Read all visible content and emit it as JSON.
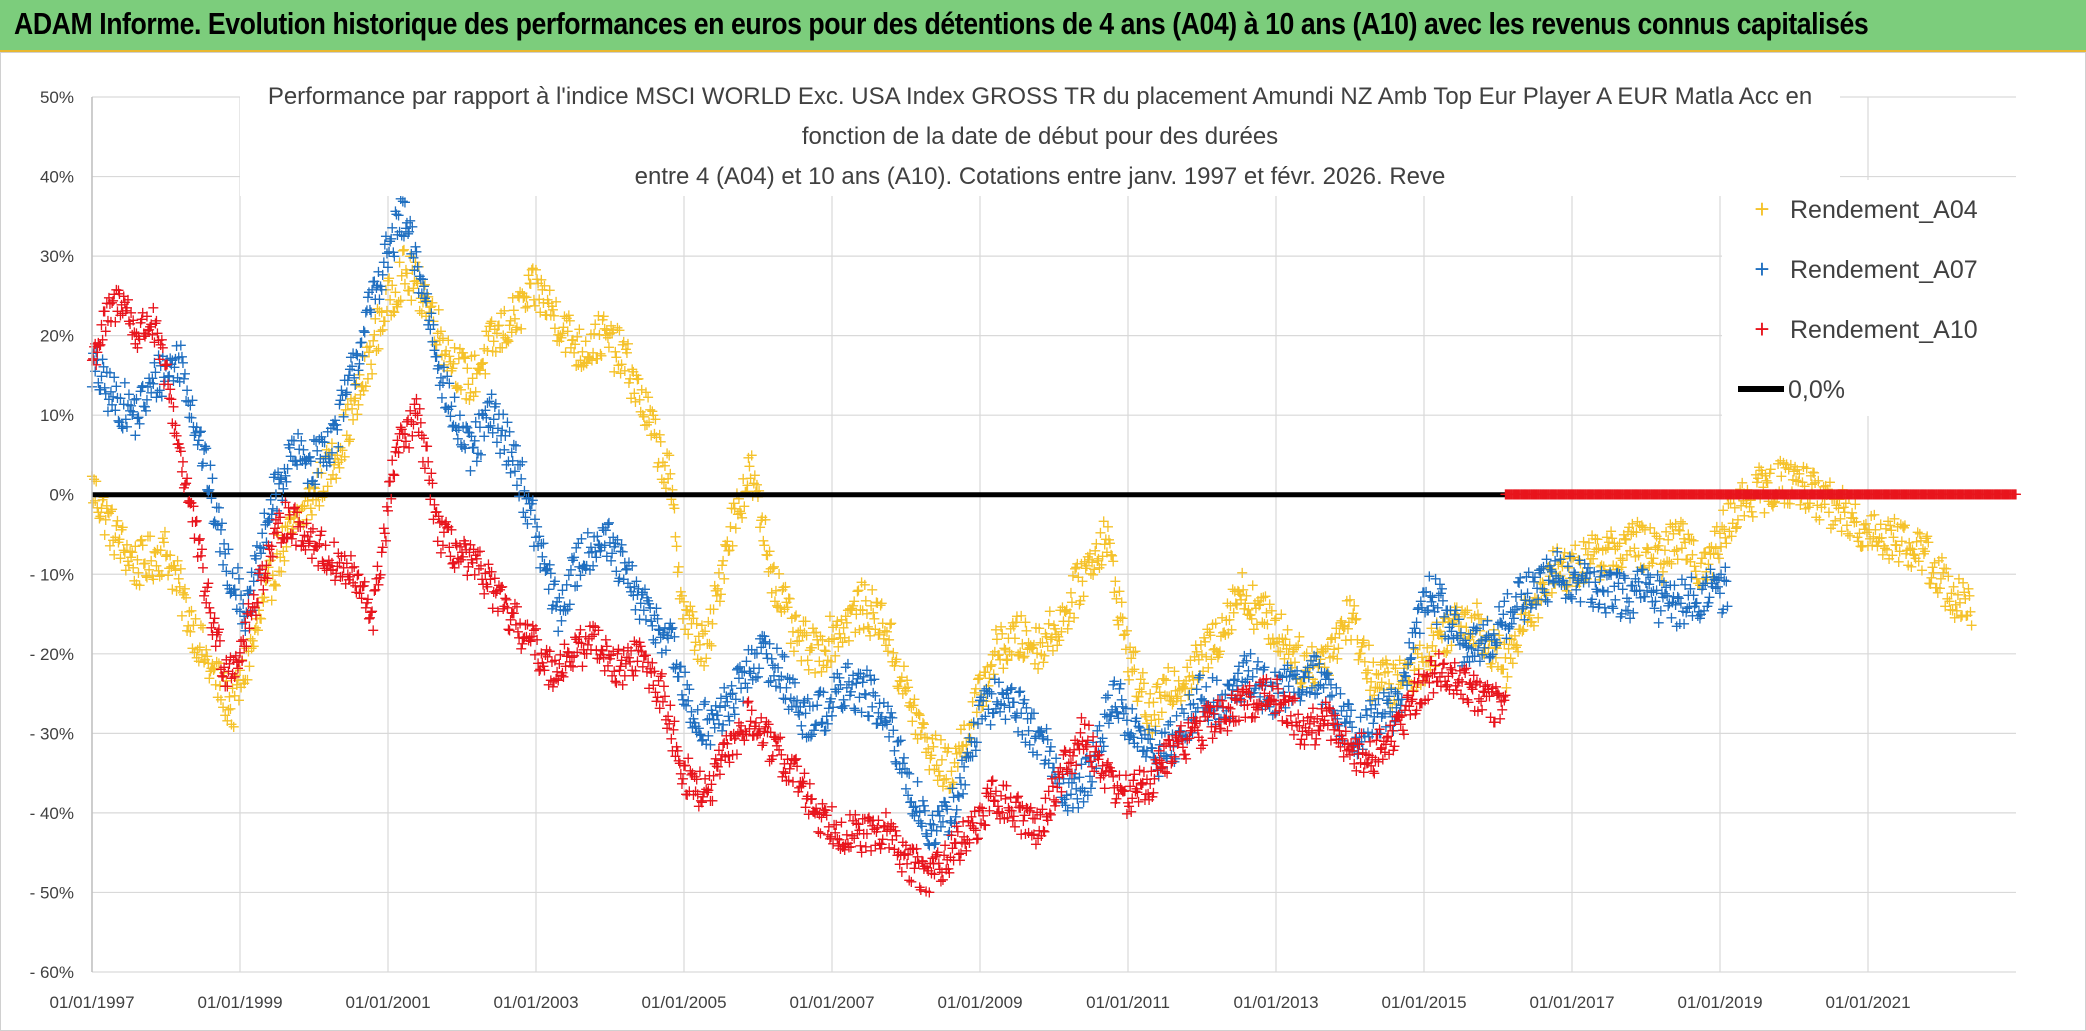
{
  "banner": {
    "title": "ADAM Informe. Evolution historique des performances en euros pour des détentions de 4 ans (A04) à 10 ans (A10) avec les revenus connus capitalisés",
    "background": "#7ccd7c"
  },
  "chart_data": {
    "type": "scatter",
    "title_lines": [
      "Performance par rapport à l'indice MSCI WORLD Exc. USA Index GROSS TR  du placement Amundi NZ Amb Top Eur Player A EUR Matla Acc en",
      "fonction de la date de début pour des durées",
      "entre 4 (A04) et 10 ans (A10). Cotations entre janv. 1997 et févr. 2026. Reve"
    ],
    "xlabel": "",
    "ylabel": "",
    "x_range": [
      1997.0,
      2023.0
    ],
    "ylim": [
      -60,
      50
    ],
    "yticks": [
      50,
      40,
      30,
      20,
      10,
      0,
      -10,
      -20,
      -30,
      -40,
      -50,
      -60
    ],
    "ytick_labels": [
      "50%",
      "40%",
      "30%",
      "20%",
      "10%",
      "0%",
      "- 10%",
      "- 20%",
      "- 30%",
      "- 40%",
      "- 50%",
      "- 60%"
    ],
    "xticks": [
      1997,
      1999,
      2001,
      2003,
      2005,
      2007,
      2009,
      2011,
      2013,
      2015,
      2017,
      2019,
      2021
    ],
    "xtick_labels": [
      "01/01/1997",
      "01/01/1999",
      "01/01/2001",
      "01/01/2003",
      "01/01/2005",
      "01/01/2007",
      "01/01/2009",
      "01/01/2011",
      "01/01/2013",
      "01/01/2015",
      "01/01/2017",
      "01/01/2019",
      "01/01/2021"
    ],
    "grid": true,
    "legend_position": "top-right",
    "series": [
      {
        "name": "Rendement_A04",
        "color": "#f5c22a",
        "marker": "+",
        "x": [
          1997.0,
          1997.3,
          1997.6,
          1998.0,
          1998.3,
          1998.6,
          1998.9,
          1999.2,
          1999.5,
          1999.8,
          2000.0,
          2000.3,
          2000.6,
          2000.9,
          2001.2,
          2001.5,
          2001.8,
          2002.1,
          2002.4,
          2002.7,
          2003.0,
          2003.3,
          2003.6,
          2003.9,
          2004.2,
          2004.5,
          2004.8,
          2005.0,
          2005.3,
          2005.6,
          2005.9,
          2006.2,
          2006.5,
          2006.8,
          2007.1,
          2007.4,
          2007.7,
          2008.0,
          2008.3,
          2008.6,
          2008.9,
          2009.2,
          2009.5,
          2009.8,
          2010.1,
          2010.4,
          2010.7,
          2011.0,
          2011.3,
          2011.6,
          2011.9,
          2012.2,
          2012.5,
          2012.8,
          2013.1,
          2013.4,
          2013.7,
          2014.0,
          2014.3,
          2014.6,
          2014.9,
          2015.2,
          2015.5,
          2015.8,
          2016.1,
          2016.4,
          2016.7,
          2017.0,
          2017.3,
          2017.6,
          2017.9,
          2018.2,
          2018.5,
          2018.8,
          2019.1,
          2019.4,
          2019.7,
          2020.0,
          2020.3,
          2020.6,
          2020.9,
          2021.2,
          2021.5,
          2021.8,
          2022.1,
          2022.4
        ],
        "y": [
          1,
          -5,
          -9,
          -7,
          -15,
          -22,
          -27,
          -18,
          -8,
          -3,
          0,
          5,
          12,
          22,
          28,
          25,
          18,
          14,
          19,
          22,
          26,
          22,
          18,
          20,
          17,
          10,
          2,
          -15,
          -20,
          -5,
          3,
          -10,
          -18,
          -20,
          -17,
          -14,
          -16,
          -25,
          -32,
          -35,
          -28,
          -20,
          -18,
          -19,
          -16,
          -10,
          -5,
          -20,
          -28,
          -24,
          -22,
          -18,
          -12,
          -15,
          -18,
          -22,
          -20,
          -15,
          -23,
          -24,
          -22,
          -18,
          -15,
          -17,
          -22,
          -15,
          -10,
          -9,
          -8,
          -7,
          -6,
          -8,
          -5,
          -10,
          -3,
          0,
          1,
          2,
          0,
          -2,
          -4,
          -5,
          -6,
          -8,
          -12,
          -15
        ],
        "y_spread": 3
      },
      {
        "name": "Rendement_A07",
        "color": "#1f6fc0",
        "marker": "+",
        "x": [
          1997.0,
          1997.3,
          1997.6,
          1997.9,
          1998.2,
          1998.5,
          1998.8,
          1999.1,
          1999.4,
          1999.7,
          2000.0,
          2000.3,
          2000.6,
          2000.9,
          2001.2,
          2001.5,
          2001.8,
          2002.1,
          2002.4,
          2002.7,
          2003.0,
          2003.3,
          2003.6,
          2003.9,
          2004.2,
          2004.5,
          2004.8,
          2005.1,
          2005.4,
          2005.7,
          2006.0,
          2006.3,
          2006.6,
          2006.9,
          2007.2,
          2007.5,
          2007.8,
          2008.1,
          2008.4,
          2008.7,
          2009.0,
          2009.3,
          2009.6,
          2009.9,
          2010.2,
          2010.5,
          2010.8,
          2011.1,
          2011.4,
          2011.7,
          2012.0,
          2012.3,
          2012.6,
          2012.9,
          2013.2,
          2013.5,
          2013.8,
          2014.1,
          2014.4,
          2014.7,
          2015.0,
          2015.3,
          2015.6,
          2015.9,
          2016.2,
          2016.5,
          2016.8,
          2017.1,
          2017.4,
          2017.7,
          2018.0,
          2018.3,
          2018.6,
          2018.9,
          2019.1
        ],
        "y": [
          16,
          12,
          10,
          15,
          17,
          5,
          -8,
          -15,
          -2,
          5,
          4,
          8,
          18,
          28,
          35,
          25,
          12,
          5,
          10,
          5,
          -5,
          -15,
          -8,
          -5,
          -10,
          -15,
          -18,
          -28,
          -29,
          -25,
          -20,
          -22,
          -28,
          -27,
          -24,
          -25,
          -30,
          -38,
          -43,
          -38,
          -28,
          -25,
          -28,
          -32,
          -38,
          -35,
          -25,
          -30,
          -33,
          -30,
          -25,
          -27,
          -22,
          -25,
          -24,
          -22,
          -27,
          -30,
          -28,
          -26,
          -12,
          -15,
          -20,
          -18,
          -14,
          -12,
          -10,
          -11,
          -12,
          -13,
          -12,
          -14,
          -13,
          -12,
          -12
        ],
        "y_spread": 3
      },
      {
        "name": "Rendement_A10",
        "color": "#e8141c",
        "marker": "+",
        "x": [
          1997.0,
          1997.2,
          1997.4,
          1997.6,
          1997.8,
          1998.0,
          1998.2,
          1998.4,
          1998.6,
          1998.8,
          1999.0,
          1999.3,
          1999.6,
          1999.9,
          2000.2,
          2000.5,
          2000.8,
          2001.1,
          2001.4,
          2001.7,
          2002.0,
          2002.3,
          2002.6,
          2002.9,
          2003.2,
          2003.5,
          2003.8,
          2004.1,
          2004.4,
          2004.7,
          2005.0,
          2005.3,
          2005.6,
          2005.9,
          2006.2,
          2006.5,
          2006.8,
          2007.1,
          2007.4,
          2007.7,
          2008.0,
          2008.3,
          2008.6,
          2008.9,
          2009.2,
          2009.5,
          2009.8,
          2010.1,
          2010.4,
          2010.7,
          2011.0,
          2011.3,
          2011.6,
          2011.9,
          2012.2,
          2012.5,
          2012.8,
          2013.1,
          2013.4,
          2013.7,
          2014.0,
          2014.3,
          2014.6,
          2014.9,
          2015.2,
          2015.5,
          2015.8,
          2016.1
        ],
        "y": [
          17,
          22,
          25,
          20,
          22,
          15,
          5,
          -5,
          -15,
          -22,
          -20,
          -10,
          -3,
          -5,
          -8,
          -10,
          -15,
          5,
          10,
          -5,
          -8,
          -10,
          -15,
          -18,
          -22,
          -20,
          -18,
          -22,
          -20,
          -25,
          -35,
          -38,
          -32,
          -28,
          -32,
          -35,
          -40,
          -42,
          -43,
          -42,
          -46,
          -48,
          -45,
          -42,
          -38,
          -40,
          -42,
          -35,
          -30,
          -35,
          -38,
          -36,
          -32,
          -30,
          -28,
          -27,
          -25,
          -26,
          -30,
          -28,
          -32,
          -33,
          -30,
          -25,
          -22,
          -23,
          -26,
          -27
        ],
        "y_spread": 2.5
      },
      {
        "name": "Rendement_A10",
        "legend": false,
        "color": "#e8141c",
        "marker": "+",
        "x": [
          2016.1,
          2017.0,
          2018.0,
          2019.0,
          2020.0,
          2021.0,
          2022.0,
          2023.0
        ],
        "y": [
          0,
          0,
          0,
          0,
          0,
          0,
          0,
          0
        ],
        "y_spread": 0
      }
    ],
    "reference_line": {
      "name": "0,0%",
      "value": 0,
      "color": "#000000"
    }
  }
}
